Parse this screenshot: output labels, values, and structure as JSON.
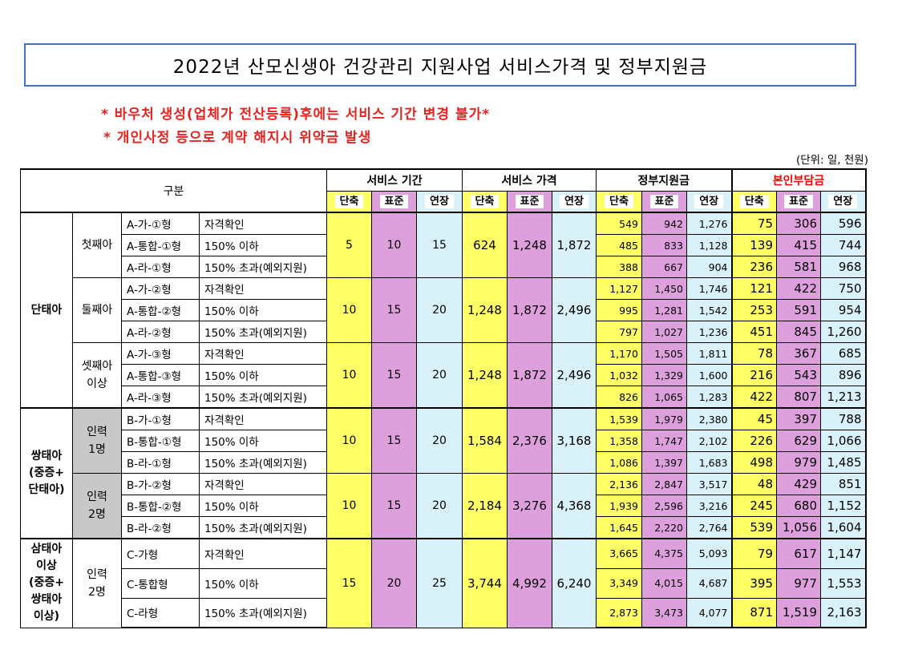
{
  "title": "2022년 산모신생아 건강관리 지원사업 서비스가격 및 정부지원금",
  "notes": [
    "* 바우처 생성(업체가 전산등록)후에는 서비스 기간 변경 불가*",
    "* 개인사정 등으로 계약 해지시 위약금 발생"
  ],
  "unit": "(단위: 일, 천원)",
  "header": {
    "category": "구분",
    "groups": [
      "서비스 기간",
      "서비스 가격",
      "정부지원금",
      "본인부담금"
    ],
    "sub": [
      "단축",
      "표준",
      "연장"
    ]
  },
  "colors": {
    "yellow": "#ffff66",
    "purple": "#dda0dd",
    "blue": "#d9f2fa",
    "red": "#ff0000",
    "gray": "#c8c8c8"
  },
  "blocks": [
    {
      "group": "단태아",
      "subgroups": [
        {
          "label": "첫째아",
          "period": [
            "5",
            "10",
            "15"
          ],
          "price": [
            "624",
            "1,248",
            "1,872"
          ],
          "rows": [
            {
              "type": "A-가-①형",
              "cond": "자격확인",
              "gov": [
                "549",
                "942",
                "1,276"
              ],
              "self": [
                "75",
                "306",
                "596"
              ]
            },
            {
              "type": "A-통합-①형",
              "cond": "150% 이하",
              "gov": [
                "485",
                "833",
                "1,128"
              ],
              "self": [
                "139",
                "415",
                "744"
              ]
            },
            {
              "type": "A-라-①형",
              "cond": "150% 초과(예외지원)",
              "gov": [
                "388",
                "667",
                "904"
              ],
              "self": [
                "236",
                "581",
                "968"
              ]
            }
          ]
        },
        {
          "label": "둘째아",
          "period": [
            "10",
            "15",
            "20"
          ],
          "price": [
            "1,248",
            "1,872",
            "2,496"
          ],
          "rows": [
            {
              "type": "A-가-②형",
              "cond": "자격확인",
              "gov": [
                "1,127",
                "1,450",
                "1,746"
              ],
              "self": [
                "121",
                "422",
                "750"
              ]
            },
            {
              "type": "A-통합-②형",
              "cond": "150% 이하",
              "gov": [
                "995",
                "1,281",
                "1,542"
              ],
              "self": [
                "253",
                "591",
                "954"
              ]
            },
            {
              "type": "A-라-②형",
              "cond": "150% 초과(예외지원)",
              "gov": [
                "797",
                "1,027",
                "1,236"
              ],
              "self": [
                "451",
                "845",
                "1,260"
              ]
            }
          ]
        },
        {
          "label": "셋째아\n이상",
          "period": [
            "10",
            "15",
            "20"
          ],
          "price": [
            "1,248",
            "1,872",
            "2,496"
          ],
          "rows": [
            {
              "type": "A-가-③형",
              "cond": "자격확인",
              "gov": [
                "1,170",
                "1,505",
                "1,811"
              ],
              "self": [
                "78",
                "367",
                "685"
              ]
            },
            {
              "type": "A-통합-③형",
              "cond": "150% 이하",
              "gov": [
                "1,032",
                "1,329",
                "1,600"
              ],
              "self": [
                "216",
                "543",
                "896"
              ]
            },
            {
              "type": "A-라-③형",
              "cond": "150% 초과(예외지원)",
              "gov": [
                "826",
                "1,065",
                "1,283"
              ],
              "self": [
                "422",
                "807",
                "1,213"
              ]
            }
          ]
        }
      ]
    },
    {
      "group": "쌍태아\n(중증+\n단태아)",
      "subgroups": [
        {
          "label": "인력\n1명",
          "period": [
            "10",
            "15",
            "20"
          ],
          "price": [
            "1,584",
            "2,376",
            "3,168"
          ],
          "rows": [
            {
              "type": "B-가-①형",
              "cond": "자격확인",
              "gov": [
                "1,539",
                "1,979",
                "2,380"
              ],
              "self": [
                "45",
                "397",
                "788"
              ]
            },
            {
              "type": "B-통합-①형",
              "cond": "150% 이하",
              "gov": [
                "1,358",
                "1,747",
                "2,102"
              ],
              "self": [
                "226",
                "629",
                "1,066"
              ]
            },
            {
              "type": "B-라-①형",
              "cond": "150% 초과(예외지원)",
              "gov": [
                "1,086",
                "1,397",
                "1,683"
              ],
              "self": [
                "498",
                "979",
                "1,485"
              ]
            }
          ]
        },
        {
          "label": "인력\n2명",
          "period": [
            "10",
            "15",
            "20"
          ],
          "price": [
            "2,184",
            "3,276",
            "4,368"
          ],
          "rows": [
            {
              "type": "B-가-②형",
              "cond": "자격확인",
              "gov": [
                "2,136",
                "2,847",
                "3,517"
              ],
              "self": [
                "48",
                "429",
                "851"
              ]
            },
            {
              "type": "B-통합-②형",
              "cond": "150% 이하",
              "gov": [
                "1,939",
                "2,596",
                "3,216"
              ],
              "self": [
                "245",
                "680",
                "1,152"
              ]
            },
            {
              "type": "B-라-②형",
              "cond": "150% 초과(예외지원)",
              "gov": [
                "1,645",
                "2,220",
                "2,764"
              ],
              "self": [
                "539",
                "1,056",
                "1,604"
              ]
            }
          ]
        }
      ]
    },
    {
      "group": "삼태아\n이상\n(중증+\n쌍태아\n이상)",
      "subgroups": [
        {
          "label": "인력\n2명",
          "period": [
            "15",
            "20",
            "25"
          ],
          "price": [
            "3,744",
            "4,992",
            "6,240"
          ],
          "rows": [
            {
              "type": "C-가형",
              "cond": "자격확인",
              "gov": [
                "3,665",
                "4,375",
                "5,093"
              ],
              "self": [
                "79",
                "617",
                "1,147"
              ]
            },
            {
              "type": "C-통합형",
              "cond": "150% 이하",
              "gov": [
                "3,349",
                "4,015",
                "4,687"
              ],
              "self": [
                "395",
                "977",
                "1,553"
              ]
            },
            {
              "type": "C-라형",
              "cond": "150% 초과(예외지원)",
              "gov": [
                "2,873",
                "3,473",
                "4,077"
              ],
              "self": [
                "871",
                "1,519",
                "2,163"
              ]
            }
          ]
        }
      ]
    }
  ]
}
